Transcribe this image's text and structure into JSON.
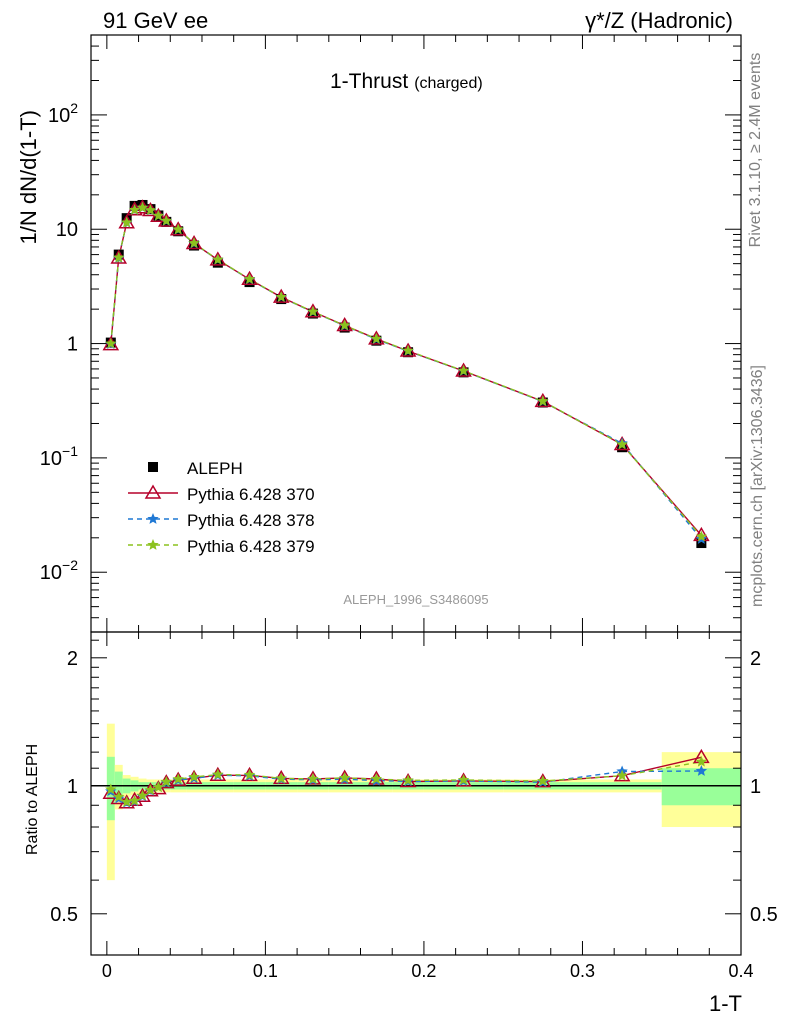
{
  "header": {
    "left": "91 GeV ee",
    "right": "γ*/Z (Hadronic)"
  },
  "side_text": {
    "rivet": "Rivet 3.1.10, ≥ 2.4M events",
    "mcplots": "mcplots.cern.ch [arXiv:1306.3436]"
  },
  "chart_data": {
    "type": "line",
    "title": "1-Thrust",
    "title_sub": "(charged)",
    "analysis_label": "ALEPH_1996_S3486095",
    "xlabel": "1-T",
    "ylabel": "1/N dN/d(1-T)",
    "ratio_ylabel": "Ratio to ALEPH",
    "xlim": [
      -0.01,
      0.4
    ],
    "ylim": [
      0.003,
      500
    ],
    "yscale": "log",
    "ratio_ylim": [
      0.4,
      2.3
    ],
    "ratio_yscale": "log",
    "x_ticks": [
      "0",
      "0.1",
      "0.2",
      "0.3",
      "0.4"
    ],
    "y_ticks": [
      {
        "base": "10",
        "exp": "−2"
      },
      {
        "base": "10",
        "exp": "−1"
      },
      {
        "base": "1",
        "exp": ""
      },
      {
        "base": "10",
        "exp": ""
      },
      {
        "base": "10",
        "exp": "2"
      }
    ],
    "ratio_ticks": [
      "0.5",
      "1",
      "2"
    ],
    "legend_position": "middle-left",
    "x": [
      0.0025,
      0.0075,
      0.0125,
      0.0175,
      0.0225,
      0.0275,
      0.0325,
      0.0375,
      0.045,
      0.055,
      0.07,
      0.09,
      0.11,
      0.13,
      0.15,
      0.17,
      0.19,
      0.225,
      0.275,
      0.325,
      0.375
    ],
    "bins": [
      [
        0,
        0.005
      ],
      [
        0.005,
        0.01
      ],
      [
        0.01,
        0.015
      ],
      [
        0.015,
        0.02
      ],
      [
        0.02,
        0.025
      ],
      [
        0.025,
        0.03
      ],
      [
        0.03,
        0.035
      ],
      [
        0.035,
        0.04
      ],
      [
        0.04,
        0.05
      ],
      [
        0.05,
        0.06
      ],
      [
        0.06,
        0.08
      ],
      [
        0.08,
        0.1
      ],
      [
        0.1,
        0.12
      ],
      [
        0.12,
        0.14
      ],
      [
        0.14,
        0.16
      ],
      [
        0.16,
        0.18
      ],
      [
        0.18,
        0.2
      ],
      [
        0.2,
        0.25
      ],
      [
        0.25,
        0.3
      ],
      [
        0.3,
        0.35
      ],
      [
        0.35,
        0.4
      ]
    ],
    "ratio_band_stat": [
      0.17,
      0.08,
      0.04,
      0.03,
      0.02,
      0.02,
      0.02,
      0.02,
      0.02,
      0.02,
      0.02,
      0.02,
      0.02,
      0.02,
      0.02,
      0.02,
      0.02,
      0.02,
      0.02,
      0.02,
      0.1
    ],
    "ratio_band_tot": [
      0.4,
      0.12,
      0.06,
      0.05,
      0.04,
      0.035,
      0.035,
      0.035,
      0.035,
      0.035,
      0.035,
      0.035,
      0.035,
      0.035,
      0.035,
      0.035,
      0.035,
      0.035,
      0.035,
      0.035,
      0.2
    ],
    "series": [
      {
        "name": "ALEPH",
        "color": "#000000",
        "marker": "square",
        "values": [
          1.02,
          6.0,
          12.5,
          16.0,
          16.3,
          15.0,
          13.2,
          11.6,
          9.6,
          7.2,
          5.1,
          3.45,
          2.45,
          1.83,
          1.38,
          1.06,
          0.84,
          0.56,
          0.305,
          0.124,
          0.018
        ]
      },
      {
        "name": "Pythia 6.428 370",
        "color": "#b5002a",
        "marker": "triangle-open",
        "dash": "",
        "values": [
          0.98,
          5.6,
          11.4,
          14.8,
          15.4,
          14.6,
          13.0,
          11.8,
          9.9,
          7.5,
          5.4,
          3.65,
          2.55,
          1.9,
          1.44,
          1.1,
          0.86,
          0.575,
          0.312,
          0.131,
          0.021
        ]
      },
      {
        "name": "Pythia 6.428 378",
        "color": "#1f78d4",
        "marker": "star",
        "dash": "5,4",
        "values": [
          0.99,
          5.6,
          11.4,
          14.7,
          15.4,
          14.6,
          13.1,
          11.8,
          9.9,
          7.5,
          5.4,
          3.64,
          2.54,
          1.89,
          1.43,
          1.09,
          0.86,
          0.575,
          0.311,
          0.134,
          0.0195
        ]
      },
      {
        "name": "Pythia 6.428 379",
        "color": "#8cc21f",
        "marker": "star",
        "dash": "5,4",
        "values": [
          1.0,
          5.65,
          11.45,
          14.75,
          15.45,
          14.65,
          13.1,
          11.85,
          9.95,
          7.55,
          5.42,
          3.66,
          2.55,
          1.9,
          1.44,
          1.1,
          0.865,
          0.578,
          0.313,
          0.131,
          0.0205
        ]
      }
    ],
    "band_colors": {
      "stat": "#99ff99",
      "total": "#ffff99"
    }
  }
}
